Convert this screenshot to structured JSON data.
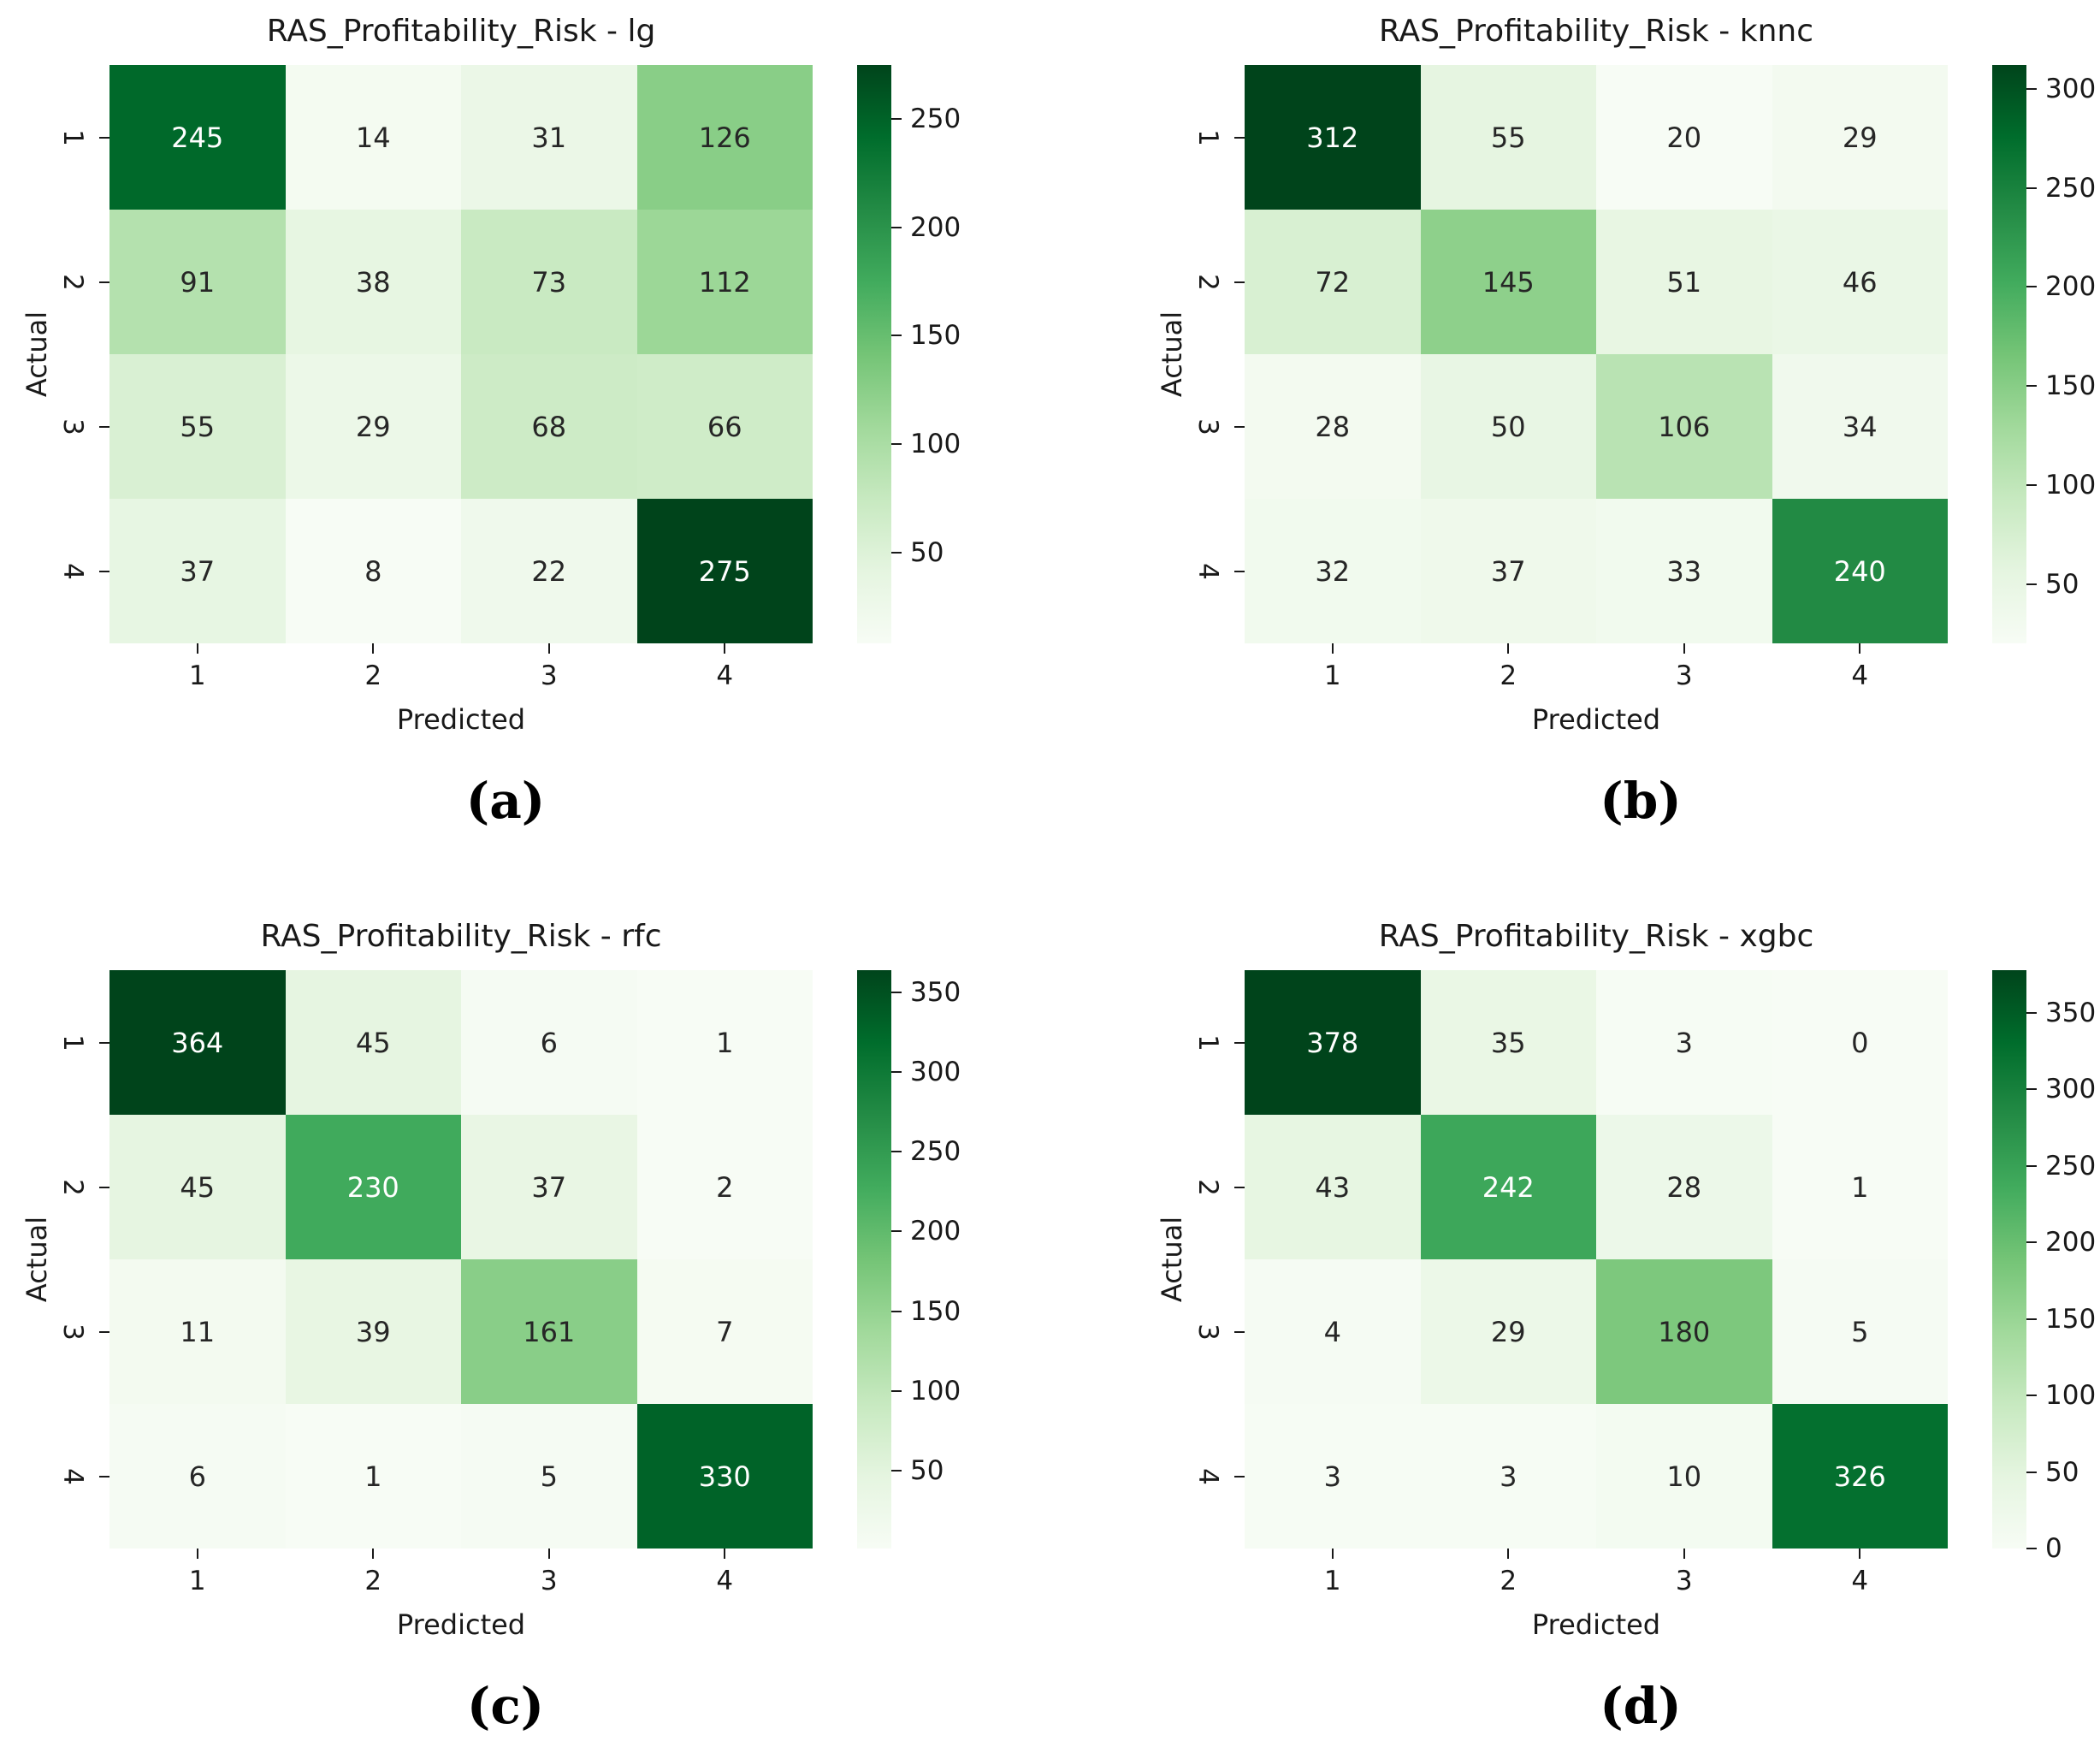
{
  "page": {
    "background": "#ffffff"
  },
  "colors": {
    "colormap_name": "Greens",
    "cmap_anchors": [
      "#f7fcf5",
      "#e5f5e0",
      "#c7e9c0",
      "#a1d99b",
      "#74c476",
      "#41ab5d",
      "#238b45",
      "#006d2c",
      "#00441b"
    ],
    "annotation_dark": "#262626",
    "annotation_light": "#ffffff",
    "axis_text": "#191919"
  },
  "chart_data": [
    {
      "type": "heatmap",
      "panel_label": "(a)",
      "title": "RAS_Profitability_Risk - lg",
      "xlabel": "Predicted",
      "ylabel": "Actual",
      "x_categories": [
        "1",
        "2",
        "3",
        "4"
      ],
      "y_categories": [
        "1",
        "2",
        "3",
        "4"
      ],
      "values": [
        [
          245,
          14,
          31,
          126
        ],
        [
          91,
          38,
          73,
          112
        ],
        [
          55,
          29,
          68,
          66
        ],
        [
          37,
          8,
          22,
          275
        ]
      ],
      "vmin": 8,
      "vmax": 275,
      "colorbar_ticks": [
        250,
        200,
        150,
        100,
        50
      ],
      "colormap": "Greens",
      "annotated": true,
      "colorbar_position": "right"
    },
    {
      "type": "heatmap",
      "panel_label": "(b)",
      "title": "RAS_Profitability_Risk - knnc",
      "xlabel": "Predicted",
      "ylabel": "Actual",
      "x_categories": [
        "1",
        "2",
        "3",
        "4"
      ],
      "y_categories": [
        "1",
        "2",
        "3",
        "4"
      ],
      "values": [
        [
          312,
          55,
          20,
          29
        ],
        [
          72,
          145,
          51,
          46
        ],
        [
          28,
          50,
          106,
          34
        ],
        [
          32,
          37,
          33,
          240
        ]
      ],
      "vmin": 20,
      "vmax": 312,
      "colorbar_ticks": [
        300,
        250,
        200,
        150,
        100,
        50
      ],
      "colormap": "Greens",
      "annotated": true,
      "colorbar_position": "right"
    },
    {
      "type": "heatmap",
      "panel_label": "(c)",
      "title": "RAS_Profitability_Risk - rfc",
      "xlabel": "Predicted",
      "ylabel": "Actual",
      "x_categories": [
        "1",
        "2",
        "3",
        "4"
      ],
      "y_categories": [
        "1",
        "2",
        "3",
        "4"
      ],
      "values": [
        [
          364,
          45,
          6,
          1
        ],
        [
          45,
          230,
          37,
          2
        ],
        [
          11,
          39,
          161,
          7
        ],
        [
          6,
          1,
          5,
          330
        ]
      ],
      "vmin": 1,
      "vmax": 364,
      "colorbar_ticks": [
        350,
        300,
        250,
        200,
        150,
        100,
        50
      ],
      "colormap": "Greens",
      "annotated": true,
      "colorbar_position": "right"
    },
    {
      "type": "heatmap",
      "panel_label": "(d)",
      "title": "RAS_Profitability_Risk - xgbc",
      "xlabel": "Predicted",
      "ylabel": "Actual",
      "x_categories": [
        "1",
        "2",
        "3",
        "4"
      ],
      "y_categories": [
        "1",
        "2",
        "3",
        "4"
      ],
      "values": [
        [
          378,
          35,
          3,
          0
        ],
        [
          43,
          242,
          28,
          1
        ],
        [
          4,
          29,
          180,
          5
        ],
        [
          3,
          3,
          10,
          326
        ]
      ],
      "vmin": 0,
      "vmax": 378,
      "colorbar_ticks": [
        350,
        300,
        250,
        200,
        150,
        100,
        50,
        0
      ],
      "colormap": "Greens",
      "annotated": true,
      "colorbar_position": "right"
    }
  ]
}
